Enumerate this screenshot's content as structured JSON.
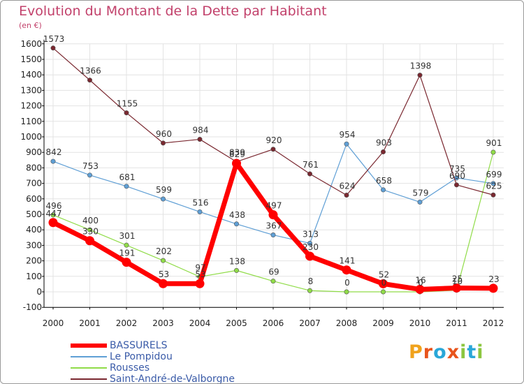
{
  "title": "Evolution du Montant de la Dette par Habitant",
  "subtitle": "(en €)",
  "logo_text": "Proxiti",
  "chart_data": {
    "type": "line",
    "title": "Evolution du Montant de la Dette par Habitant",
    "subtitle": "(en €)",
    "x": [
      "2000",
      "2001",
      "2002",
      "2003",
      "2004",
      "2005",
      "2006",
      "2007",
      "2008",
      "2009",
      "2010",
      "2011",
      "2012"
    ],
    "ylim": [
      -100,
      1600
    ],
    "yticks": [
      -100,
      0,
      100,
      200,
      300,
      400,
      500,
      600,
      700,
      800,
      900,
      1000,
      1100,
      1200,
      1300,
      1400,
      1500,
      1600
    ],
    "grid": true,
    "legend_position": "bottom-left",
    "series": [
      {
        "name": "BASSURELS",
        "color": "#ff0000",
        "values": [
          447,
          330,
          191,
          53,
          53,
          829,
          497,
          230,
          141,
          52,
          16,
          25,
          23
        ]
      },
      {
        "name": "Le Pompidou",
        "color": "#5f9fd5",
        "values": [
          842,
          753,
          681,
          599,
          516,
          438,
          367,
          313,
          954,
          658,
          579,
          735,
          699
        ]
      },
      {
        "name": "Rousses",
        "color": "#90dc48",
        "values": [
          496,
          400,
          301,
          202,
          97,
          138,
          69,
          8,
          0,
          0,
          0,
          10,
          901
        ]
      },
      {
        "name": "Saint-André-de-Valborgne",
        "color": "#7a2830",
        "values": [
          1573,
          1366,
          1155,
          960,
          984,
          839,
          920,
          761,
          624,
          903,
          1398,
          690,
          625
        ]
      }
    ]
  }
}
